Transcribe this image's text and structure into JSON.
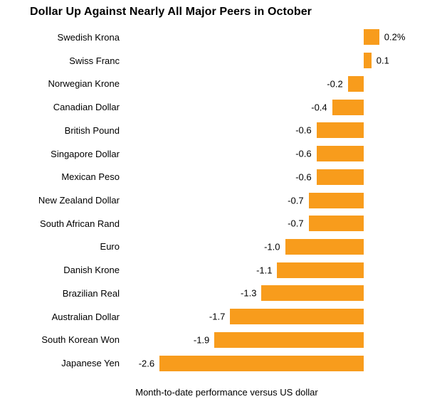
{
  "title": "Dollar Up Against Nearly All Major Peers in October",
  "footer": "Month-to-date performance versus US dollar",
  "colors": {
    "bar": "#F89C1C",
    "text": "#000000",
    "background": "#FFFFFF"
  },
  "chart_data": {
    "type": "bar",
    "orientation": "horizontal",
    "title": "Dollar Up Against Nearly All Major Peers in October",
    "xlabel": "Month-to-date performance versus US dollar",
    "ylabel": "",
    "categories": [
      "Swedish Krona",
      "Swiss Franc",
      "Norwegian Krone",
      "Canadian Dollar",
      "British Pound",
      "Singapore Dollar",
      "Mexican Peso",
      "New Zealand Dollar",
      "South African Rand",
      "Euro",
      "Danish Krone",
      "Brazilian Real",
      "Australian Dollar",
      "South Korean Won",
      "Japanese Yen"
    ],
    "values": [
      0.2,
      0.1,
      -0.2,
      -0.4,
      -0.6,
      -0.6,
      -0.6,
      -0.7,
      -0.7,
      -1.0,
      -1.1,
      -1.3,
      -1.7,
      -1.9,
      -2.6
    ],
    "value_labels": [
      "0.2%",
      "0.1",
      "-0.2",
      "-0.4",
      "-0.6",
      "-0.6",
      "-0.6",
      "-0.7",
      "-0.7",
      "-1.0",
      "-1.1",
      "-1.3",
      "-1.7",
      "-1.9",
      "-2.6"
    ],
    "xlim": [
      -3,
      1
    ],
    "grid": false,
    "legend": "none",
    "bar_color": "#F89C1C",
    "unit": "%"
  }
}
